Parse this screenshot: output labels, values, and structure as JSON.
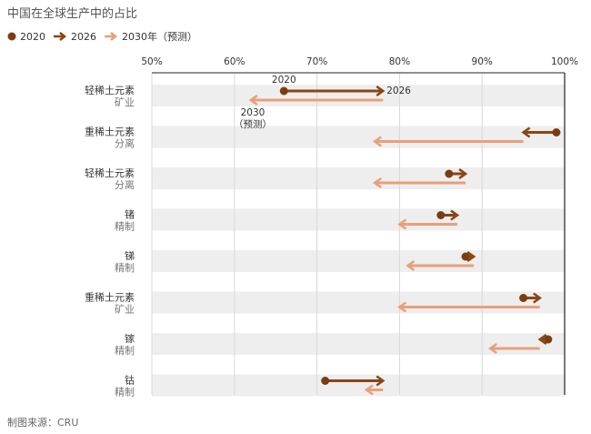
{
  "title": "中国在全球生产中的占比",
  "source": "制图来源：CRU",
  "legend": {
    "y2020": "2020",
    "y2026": "2026",
    "y2030": "2030年（预测）"
  },
  "colors": {
    "c2020": "#7a3d10",
    "c2026": "#8b4513",
    "c2030": "#e8a07a",
    "band": "#eeeeee",
    "grid": "#d8d8d8"
  },
  "chart_data": {
    "type": "dot-arrow",
    "x_ticks": [
      "50%",
      "60%",
      "70%",
      "80%",
      "90%",
      "100%"
    ],
    "xlim": [
      50,
      100
    ],
    "annotations": {
      "label_2020": "2020",
      "label_2026": "2026",
      "label_2030_a": "2030",
      "label_2030_b": "（预测）"
    },
    "rows": [
      {
        "line1": "轻稀土元素",
        "line2": "矿业",
        "v2020": 66,
        "v2026": 78,
        "v2030": 62
      },
      {
        "line1": "重稀土元素",
        "line2": "分离",
        "v2020": 99,
        "v2026": 95,
        "v2030": 77
      },
      {
        "line1": "轻稀土元素",
        "line2": "分离",
        "v2020": 86,
        "v2026": 88,
        "v2030": 77
      },
      {
        "line1": "锗",
        "line2": "精制",
        "v2020": 85,
        "v2026": 87,
        "v2030": 80
      },
      {
        "line1": "锑",
        "line2": "精制",
        "v2020": 88,
        "v2026": 89,
        "v2030": 81
      },
      {
        "line1": "重稀土元素",
        "line2": "矿业",
        "v2020": 95,
        "v2026": 97,
        "v2030": 80
      },
      {
        "line1": "镓",
        "line2": "精制",
        "v2020": 98,
        "v2026": 97,
        "v2030": 91
      },
      {
        "line1": "钴",
        "line2": "精制",
        "v2020": 71,
        "v2026": 78,
        "v2030": 76
      }
    ]
  }
}
